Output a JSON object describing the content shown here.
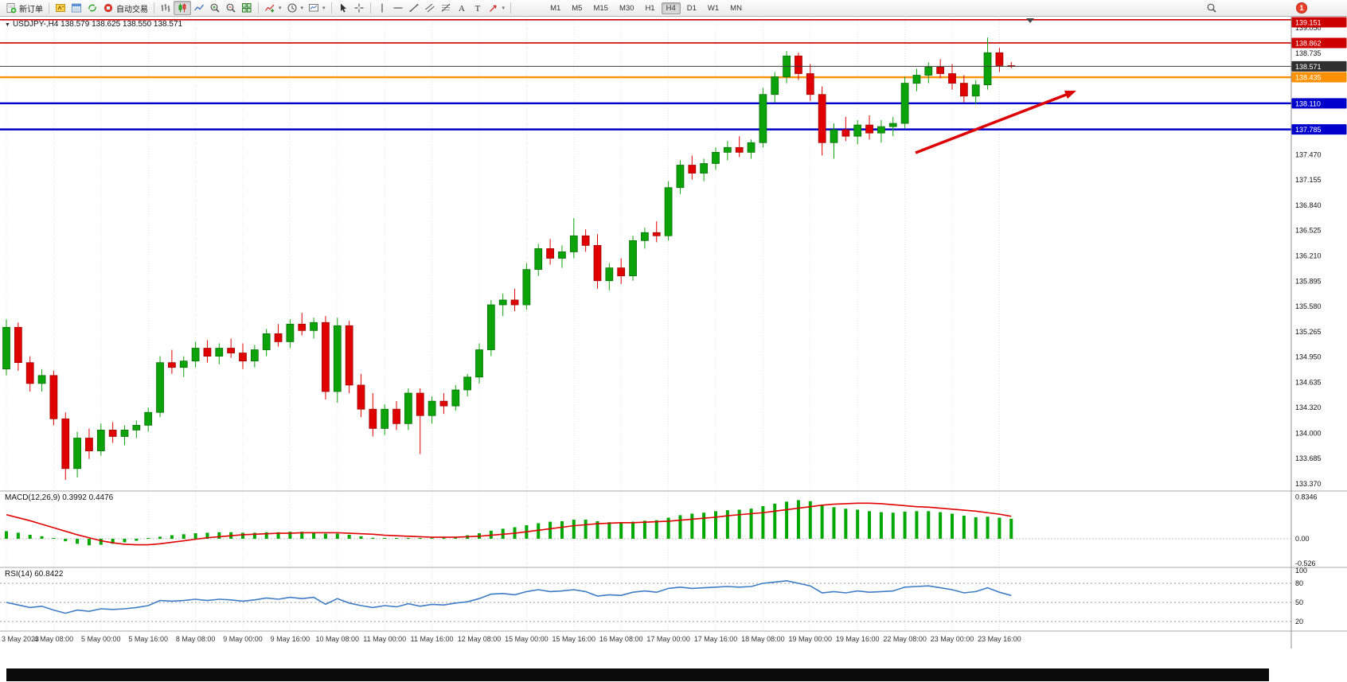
{
  "toolbar": {
    "new_order_label": "新订单",
    "autotrading_label": "自动交易",
    "timeframes": [
      "M1",
      "M5",
      "M15",
      "M30",
      "H1",
      "H4",
      "D1",
      "W1",
      "MN"
    ],
    "active_timeframe": "H4",
    "notification_badge": "1"
  },
  "icons": {
    "new_order": "document-plus",
    "metaeditor": "yellow-editor",
    "market_watch": "blue-window",
    "refresh": "green-cycle-arrows",
    "autotrading": "red-stop-circle",
    "bar_chart": "ohlc-bars",
    "candlestick": "candles",
    "line_chart": "polyline",
    "zoom_in": "magnifier-plus",
    "zoom_out": "magnifier-minus",
    "tile_windows": "green-grid",
    "indicators": "chart-plus",
    "periods": "clock",
    "templates": "chart-template",
    "cursor": "pointer-arrow",
    "crosshair": "crosshair",
    "vertical_line": "vline",
    "horizontal_line": "hline",
    "trendline": "diagonal-line",
    "channel": "parallel-lines",
    "fibonacci": "fibo-lines",
    "text": "letter-A",
    "label": "letter-T",
    "shapes": "arrow-shape",
    "search": "magnifier",
    "notification": "red-circle-badge"
  },
  "main_chart": {
    "symbol_label": "USDJPY-,H4",
    "ohlc_text": "138.579 138.625 138.550 138.571",
    "price_ticks": [
      "139.050",
      "138.735",
      "138.420",
      "138.105",
      "137.790",
      "137.470",
      "137.155",
      "136.840",
      "136.525",
      "136.210",
      "135.895",
      "135.580",
      "135.265",
      "134.950",
      "134.635",
      "134.320",
      "134.000",
      "133.685",
      "133.370"
    ],
    "first_tick_value": 139.05,
    "last_tick_value": 133.37,
    "levels": [
      {
        "value": 139.151,
        "label": "139.151",
        "color": "#cc0000",
        "width": 1.6,
        "type": "resistance"
      },
      {
        "value": 138.862,
        "label": "138.862",
        "color": "#cc0000",
        "width": 1.6,
        "type": "resistance"
      },
      {
        "value": 138.435,
        "label": "138.435",
        "color": "#ff9100",
        "width": 2.4,
        "type": "pivot"
      },
      {
        "value": 138.11,
        "label": "138.110",
        "color": "#0000cc",
        "width": 2.4,
        "type": "support"
      },
      {
        "value": 137.785,
        "label": "137.785",
        "color": "#0000cc",
        "width": 2.4,
        "type": "support"
      }
    ],
    "current_price": {
      "value": 138.571,
      "label": "138.571",
      "badge_color": "#2f2f2f"
    },
    "trend_arrow": {
      "color": "#dd0000"
    }
  },
  "macd_panel": {
    "title": "MACD(12,26,9)",
    "value_main": "0.3992",
    "value_signal": "0.4476",
    "scale": [
      "0.8346",
      "0.00",
      "-0.526"
    ]
  },
  "rsi_panel": {
    "title": "RSI(14)",
    "value": "60.8422",
    "scale": [
      "100",
      "80",
      "50",
      "20"
    ]
  },
  "chart_data": {
    "type": "candlestick",
    "title": "USDJPY H4",
    "up_color": "#0ca30a",
    "down_color": "#e00000",
    "label_interval": 4,
    "x_labels": [
      "3 May 2023",
      "4 May 08:00",
      "5 May 00:00",
      "5 May 16:00",
      "8 May 08:00",
      "9 May 00:00",
      "9 May 16:00",
      "10 May 08:00",
      "11 May 00:00",
      "11 May 16:00",
      "12 May 08:00",
      "15 May 00:00",
      "15 May 16:00",
      "16 May 08:00",
      "17 May 00:00",
      "17 May 16:00",
      "18 May 08:00",
      "19 May 00:00",
      "19 May 16:00",
      "22 May 08:00",
      "23 May 00:00",
      "23 May 16:00"
    ],
    "ohlc": [
      [
        134.8,
        135.42,
        134.72,
        135.32
      ],
      [
        135.32,
        135.38,
        134.78,
        134.88
      ],
      [
        134.88,
        134.96,
        134.52,
        134.62
      ],
      [
        134.62,
        134.8,
        134.52,
        134.72
      ],
      [
        134.72,
        134.78,
        134.1,
        134.18
      ],
      [
        134.18,
        134.26,
        133.42,
        133.56
      ],
      [
        133.56,
        134.02,
        133.45,
        133.94
      ],
      [
        133.94,
        134.06,
        133.68,
        133.78
      ],
      [
        133.78,
        134.12,
        133.72,
        134.04
      ],
      [
        134.04,
        134.14,
        133.88,
        133.96
      ],
      [
        133.96,
        134.1,
        133.85,
        134.04
      ],
      [
        134.04,
        134.16,
        133.94,
        134.1
      ],
      [
        134.1,
        134.32,
        134.02,
        134.26
      ],
      [
        134.26,
        134.96,
        134.2,
        134.88
      ],
      [
        134.88,
        135.04,
        134.74,
        134.82
      ],
      [
        134.82,
        134.96,
        134.7,
        134.9
      ],
      [
        134.9,
        135.14,
        134.82,
        135.06
      ],
      [
        135.06,
        135.16,
        134.88,
        134.96
      ],
      [
        134.96,
        135.12,
        134.86,
        135.06
      ],
      [
        135.06,
        135.18,
        134.94,
        135.0
      ],
      [
        135.0,
        135.12,
        134.8,
        134.9
      ],
      [
        134.9,
        135.1,
        134.82,
        135.04
      ],
      [
        135.04,
        135.3,
        134.96,
        135.24
      ],
      [
        135.24,
        135.36,
        135.08,
        135.14
      ],
      [
        135.14,
        135.42,
        135.06,
        135.36
      ],
      [
        135.36,
        135.5,
        135.22,
        135.28
      ],
      [
        135.28,
        135.44,
        135.18,
        135.38
      ],
      [
        135.38,
        135.46,
        134.42,
        134.52
      ],
      [
        134.52,
        135.44,
        134.38,
        135.34
      ],
      [
        135.34,
        135.4,
        134.5,
        134.6
      ],
      [
        134.6,
        134.74,
        134.2,
        134.3
      ],
      [
        134.3,
        134.5,
        133.96,
        134.06
      ],
      [
        134.06,
        134.36,
        133.98,
        134.3
      ],
      [
        134.3,
        134.4,
        134.04,
        134.12
      ],
      [
        134.12,
        134.56,
        134.04,
        134.5
      ],
      [
        134.5,
        134.56,
        133.74,
        134.22
      ],
      [
        134.22,
        134.46,
        134.12,
        134.4
      ],
      [
        134.4,
        134.5,
        134.24,
        134.34
      ],
      [
        134.34,
        134.6,
        134.28,
        134.54
      ],
      [
        134.54,
        134.74,
        134.46,
        134.7
      ],
      [
        134.7,
        135.12,
        134.62,
        135.04
      ],
      [
        135.04,
        135.66,
        134.96,
        135.6
      ],
      [
        135.6,
        135.74,
        135.46,
        135.66
      ],
      [
        135.66,
        135.8,
        135.52,
        135.6
      ],
      [
        135.6,
        136.12,
        135.54,
        136.04
      ],
      [
        136.04,
        136.36,
        135.96,
        136.3
      ],
      [
        136.3,
        136.42,
        136.1,
        136.18
      ],
      [
        136.18,
        136.34,
        136.06,
        136.26
      ],
      [
        136.26,
        136.68,
        136.18,
        136.46
      ],
      [
        136.46,
        136.54,
        136.26,
        136.34
      ],
      [
        136.34,
        136.48,
        135.8,
        135.9
      ],
      [
        135.9,
        136.12,
        135.78,
        136.06
      ],
      [
        136.06,
        136.18,
        135.86,
        135.96
      ],
      [
        135.96,
        136.46,
        135.9,
        136.4
      ],
      [
        136.4,
        136.56,
        136.3,
        136.5
      ],
      [
        136.5,
        136.64,
        136.38,
        136.46
      ],
      [
        136.46,
        137.14,
        136.4,
        137.06
      ],
      [
        137.06,
        137.4,
        136.98,
        137.34
      ],
      [
        137.34,
        137.46,
        137.16,
        137.24
      ],
      [
        137.24,
        137.42,
        137.14,
        137.36
      ],
      [
        137.36,
        137.56,
        137.28,
        137.5
      ],
      [
        137.5,
        137.64,
        137.4,
        137.56
      ],
      [
        137.56,
        137.7,
        137.44,
        137.5
      ],
      [
        137.5,
        137.66,
        137.42,
        137.62
      ],
      [
        137.62,
        138.3,
        137.56,
        138.22
      ],
      [
        138.22,
        138.5,
        138.12,
        138.44
      ],
      [
        138.44,
        138.76,
        138.36,
        138.7
      ],
      [
        138.7,
        138.74,
        138.4,
        138.48
      ],
      [
        138.48,
        138.6,
        138.14,
        138.22
      ],
      [
        138.22,
        138.32,
        137.46,
        137.62
      ],
      [
        137.62,
        137.86,
        137.42,
        137.78
      ],
      [
        137.78,
        137.94,
        137.64,
        137.7
      ],
      [
        137.7,
        137.9,
        137.6,
        137.84
      ],
      [
        137.84,
        137.96,
        137.66,
        137.74
      ],
      [
        137.74,
        137.9,
        137.62,
        137.82
      ],
      [
        137.82,
        137.94,
        137.7,
        137.86
      ],
      [
        137.86,
        138.44,
        137.8,
        138.36
      ],
      [
        138.36,
        138.54,
        138.26,
        138.46
      ],
      [
        138.46,
        138.62,
        138.36,
        138.56
      ],
      [
        138.56,
        138.66,
        138.42,
        138.48
      ],
      [
        138.48,
        138.6,
        138.28,
        138.36
      ],
      [
        138.36,
        138.46,
        138.12,
        138.2
      ],
      [
        138.2,
        138.4,
        138.1,
        138.34
      ],
      [
        138.34,
        138.93,
        138.28,
        138.74
      ],
      [
        138.74,
        138.8,
        138.5,
        138.58
      ],
      [
        138.579,
        138.625,
        138.55,
        138.571
      ]
    ],
    "indicators": {
      "macd": {
        "histogram": [
          0.15,
          0.12,
          0.08,
          0.05,
          0.0,
          -0.05,
          -0.1,
          -0.13,
          -0.12,
          -0.1,
          -0.07,
          -0.04,
          0.0,
          0.04,
          0.07,
          0.09,
          0.11,
          0.12,
          0.13,
          0.13,
          0.12,
          0.12,
          0.13,
          0.13,
          0.14,
          0.14,
          0.13,
          0.1,
          0.1,
          0.08,
          0.05,
          0.02,
          0.0,
          -0.01,
          0.01,
          0.0,
          0.01,
          0.02,
          0.04,
          0.07,
          0.11,
          0.16,
          0.2,
          0.23,
          0.27,
          0.31,
          0.34,
          0.35,
          0.38,
          0.38,
          0.35,
          0.33,
          0.32,
          0.34,
          0.36,
          0.37,
          0.42,
          0.47,
          0.5,
          0.52,
          0.55,
          0.57,
          0.58,
          0.6,
          0.65,
          0.7,
          0.74,
          0.77,
          0.75,
          0.68,
          0.63,
          0.6,
          0.58,
          0.55,
          0.53,
          0.52,
          0.54,
          0.55,
          0.55,
          0.53,
          0.5,
          0.46,
          0.43,
          0.44,
          0.42,
          0.3992
        ],
        "signal": [
          0.48,
          0.42,
          0.36,
          0.29,
          0.22,
          0.15,
          0.08,
          0.02,
          -0.04,
          -0.08,
          -0.11,
          -0.12,
          -0.12,
          -0.1,
          -0.07,
          -0.04,
          -0.01,
          0.02,
          0.04,
          0.06,
          0.08,
          0.09,
          0.1,
          0.11,
          0.11,
          0.12,
          0.12,
          0.12,
          0.12,
          0.11,
          0.1,
          0.09,
          0.07,
          0.06,
          0.05,
          0.04,
          0.03,
          0.03,
          0.03,
          0.04,
          0.05,
          0.07,
          0.09,
          0.11,
          0.14,
          0.17,
          0.2,
          0.23,
          0.26,
          0.28,
          0.3,
          0.31,
          0.32,
          0.32,
          0.33,
          0.34,
          0.35,
          0.37,
          0.39,
          0.41,
          0.43,
          0.46,
          0.48,
          0.5,
          0.52,
          0.55,
          0.58,
          0.61,
          0.64,
          0.67,
          0.69,
          0.7,
          0.71,
          0.71,
          0.7,
          0.68,
          0.66,
          0.64,
          0.63,
          0.61,
          0.59,
          0.57,
          0.55,
          0.52,
          0.49,
          0.4476
        ],
        "range": [
          -0.526,
          0.8346
        ]
      },
      "rsi": {
        "values": [
          50,
          46,
          42,
          44,
          38,
          33,
          38,
          36,
          40,
          39,
          40,
          42,
          45,
          53,
          52,
          53,
          55,
          53,
          55,
          54,
          52,
          54,
          57,
          55,
          58,
          56,
          58,
          47,
          56,
          49,
          45,
          42,
          45,
          43,
          48,
          44,
          47,
          46,
          49,
          51,
          56,
          63,
          64,
          62,
          67,
          70,
          67,
          68,
          70,
          67,
          60,
          62,
          61,
          66,
          68,
          66,
          72,
          74,
          72,
          73,
          74,
          75,
          74,
          75,
          80,
          82,
          84,
          80,
          76,
          65,
          67,
          65,
          68,
          66,
          67,
          68,
          74,
          75,
          76,
          73,
          70,
          65,
          67,
          73,
          66,
          60.8422
        ],
        "levels": [
          80,
          50,
          20
        ],
        "range": [
          0,
          100
        ]
      }
    }
  }
}
